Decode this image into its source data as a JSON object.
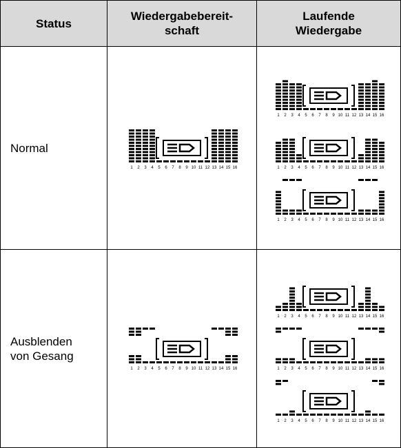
{
  "table": {
    "header": [
      "Status",
      "Wiedergabebereit-schaft",
      "Laufende Wiedergabe"
    ],
    "rows": [
      [
        "Normal"
      ],
      [
        "Ausblenden von Gesang"
      ]
    ]
  },
  "segment_numbers": [
    "1",
    "2",
    "3",
    "4",
    "5",
    "6",
    "7",
    "8",
    "9",
    "10",
    "11",
    "12",
    "13",
    "14",
    "15",
    "16"
  ]
}
